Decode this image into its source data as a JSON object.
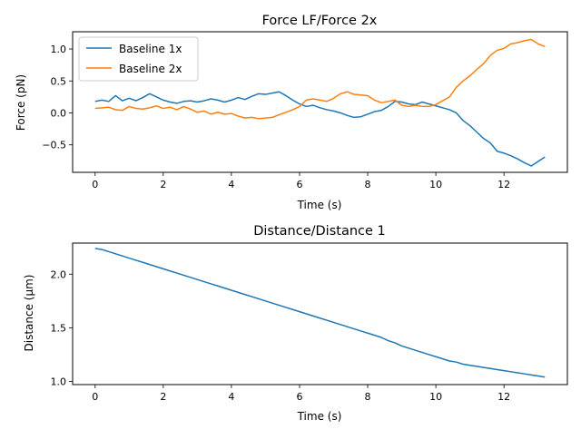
{
  "chart_data": [
    {
      "type": "line",
      "title": "Force LF/Force 2x",
      "xlabel": "Time (s)",
      "ylabel": "Force (pN)",
      "xlim": [
        -0.66,
        13.86
      ],
      "ylim": [
        -0.93,
        1.27
      ],
      "xticks": [
        0,
        2,
        4,
        6,
        8,
        10,
        12
      ],
      "yticks": [
        -0.5,
        0.0,
        0.5,
        1.0
      ],
      "xtick_labels": [
        "0",
        "2",
        "4",
        "6",
        "8",
        "10",
        "12"
      ],
      "ytick_labels": [
        "−0.5",
        "0.0",
        "0.5",
        "1.0"
      ],
      "grid": false,
      "legend": "top-left",
      "series": [
        {
          "name": "Baseline 1x",
          "color": "#1f77b4",
          "x": [
            0.0,
            0.2,
            0.4,
            0.6,
            0.8,
            1.0,
            1.2,
            1.4,
            1.6,
            1.8,
            2.0,
            2.2,
            2.4,
            2.6,
            2.8,
            3.0,
            3.2,
            3.4,
            3.6,
            3.8,
            4.0,
            4.2,
            4.4,
            4.6,
            4.8,
            5.0,
            5.2,
            5.4,
            5.6,
            5.8,
            6.0,
            6.2,
            6.4,
            6.6,
            6.8,
            7.0,
            7.2,
            7.4,
            7.6,
            7.8,
            8.0,
            8.2,
            8.4,
            8.6,
            8.8,
            9.0,
            9.2,
            9.4,
            9.6,
            9.8,
            10.0,
            10.2,
            10.4,
            10.6,
            10.8,
            11.0,
            11.2,
            11.4,
            11.6,
            11.8,
            12.0,
            12.2,
            12.4,
            12.6,
            12.8,
            13.0,
            13.2
          ],
          "y": [
            0.18,
            0.2,
            0.18,
            0.27,
            0.19,
            0.23,
            0.19,
            0.24,
            0.3,
            0.25,
            0.2,
            0.17,
            0.15,
            0.18,
            0.19,
            0.17,
            0.19,
            0.22,
            0.2,
            0.17,
            0.2,
            0.24,
            0.21,
            0.26,
            0.3,
            0.29,
            0.31,
            0.33,
            0.27,
            0.2,
            0.14,
            0.1,
            0.12,
            0.08,
            0.05,
            0.03,
            0.0,
            -0.04,
            -0.07,
            -0.06,
            -0.02,
            0.02,
            0.04,
            0.1,
            0.18,
            0.17,
            0.14,
            0.13,
            0.17,
            0.14,
            0.11,
            0.08,
            0.05,
            0.0,
            -0.12,
            -0.2,
            -0.3,
            -0.4,
            -0.47,
            -0.6,
            -0.63,
            -0.67,
            -0.72,
            -0.78,
            -0.83,
            -0.76,
            -0.69
          ]
        },
        {
          "name": "Baseline 2x",
          "color": "#ff7f0e",
          "x": [
            0.0,
            0.2,
            0.4,
            0.6,
            0.8,
            1.0,
            1.2,
            1.4,
            1.6,
            1.8,
            2.0,
            2.2,
            2.4,
            2.6,
            2.8,
            3.0,
            3.2,
            3.4,
            3.6,
            3.8,
            4.0,
            4.2,
            4.4,
            4.6,
            4.8,
            5.0,
            5.2,
            5.4,
            5.6,
            5.8,
            6.0,
            6.2,
            6.4,
            6.6,
            6.8,
            7.0,
            7.2,
            7.4,
            7.6,
            7.8,
            8.0,
            8.2,
            8.4,
            8.6,
            8.8,
            9.0,
            9.2,
            9.4,
            9.6,
            9.8,
            10.0,
            10.2,
            10.4,
            10.6,
            10.8,
            11.0,
            11.2,
            11.4,
            11.6,
            11.8,
            12.0,
            12.2,
            12.4,
            12.6,
            12.8,
            13.0,
            13.2
          ],
          "y": [
            0.07,
            0.08,
            0.09,
            0.05,
            0.04,
            0.1,
            0.07,
            0.06,
            0.08,
            0.11,
            0.07,
            0.09,
            0.05,
            0.1,
            0.06,
            0.01,
            0.03,
            -0.02,
            0.01,
            -0.02,
            -0.01,
            -0.05,
            -0.08,
            -0.07,
            -0.09,
            -0.08,
            -0.07,
            -0.03,
            0.01,
            0.05,
            0.1,
            0.2,
            0.22,
            0.2,
            0.18,
            0.23,
            0.3,
            0.33,
            0.29,
            0.28,
            0.27,
            0.2,
            0.16,
            0.18,
            0.2,
            0.12,
            0.1,
            0.12,
            0.1,
            0.1,
            0.13,
            0.19,
            0.25,
            0.4,
            0.5,
            0.58,
            0.68,
            0.77,
            0.9,
            0.98,
            1.01,
            1.08,
            1.1,
            1.13,
            1.15,
            1.08,
            1.04
          ]
        }
      ]
    },
    {
      "type": "line",
      "title": "Distance/Distance 1",
      "xlabel": "Time (s)",
      "ylabel": "Distance (μm)",
      "xlim": [
        -0.66,
        13.86
      ],
      "ylim": [
        0.97,
        2.29
      ],
      "xticks": [
        0,
        2,
        4,
        6,
        8,
        10,
        12
      ],
      "yticks": [
        1.0,
        1.5,
        2.0
      ],
      "xtick_labels": [
        "0",
        "2",
        "4",
        "6",
        "8",
        "10",
        "12"
      ],
      "ytick_labels": [
        "1.0",
        "1.5",
        "2.0"
      ],
      "grid": false,
      "legend": "none",
      "series": [
        {
          "color": "#1f77b4",
          "x": [
            0.0,
            0.2,
            0.4,
            0.6,
            0.8,
            1.0,
            1.2,
            1.4,
            1.6,
            1.8,
            2.0,
            2.2,
            2.4,
            2.6,
            2.8,
            3.0,
            3.2,
            3.4,
            3.6,
            3.8,
            4.0,
            4.2,
            4.4,
            4.6,
            4.8,
            5.0,
            5.2,
            5.4,
            5.6,
            5.8,
            6.0,
            6.2,
            6.4,
            6.6,
            6.8,
            7.0,
            7.2,
            7.4,
            7.6,
            7.8,
            8.0,
            8.2,
            8.4,
            8.6,
            8.8,
            9.0,
            9.2,
            9.4,
            9.6,
            9.8,
            10.0,
            10.2,
            10.4,
            10.6,
            10.8,
            11.0,
            11.2,
            11.4,
            11.6,
            11.8,
            12.0,
            12.2,
            12.4,
            12.6,
            12.8,
            13.0,
            13.2
          ],
          "y": [
            2.24,
            2.23,
            2.21,
            2.19,
            2.17,
            2.15,
            2.13,
            2.11,
            2.09,
            2.07,
            2.05,
            2.03,
            2.01,
            1.99,
            1.97,
            1.95,
            1.93,
            1.91,
            1.89,
            1.87,
            1.85,
            1.83,
            1.81,
            1.79,
            1.77,
            1.75,
            1.73,
            1.71,
            1.69,
            1.67,
            1.65,
            1.63,
            1.61,
            1.59,
            1.57,
            1.55,
            1.53,
            1.51,
            1.49,
            1.47,
            1.45,
            1.43,
            1.41,
            1.38,
            1.36,
            1.33,
            1.31,
            1.29,
            1.27,
            1.25,
            1.23,
            1.21,
            1.19,
            1.18,
            1.16,
            1.15,
            1.14,
            1.13,
            1.12,
            1.11,
            1.1,
            1.09,
            1.08,
            1.07,
            1.06,
            1.05,
            1.04
          ]
        }
      ]
    }
  ]
}
